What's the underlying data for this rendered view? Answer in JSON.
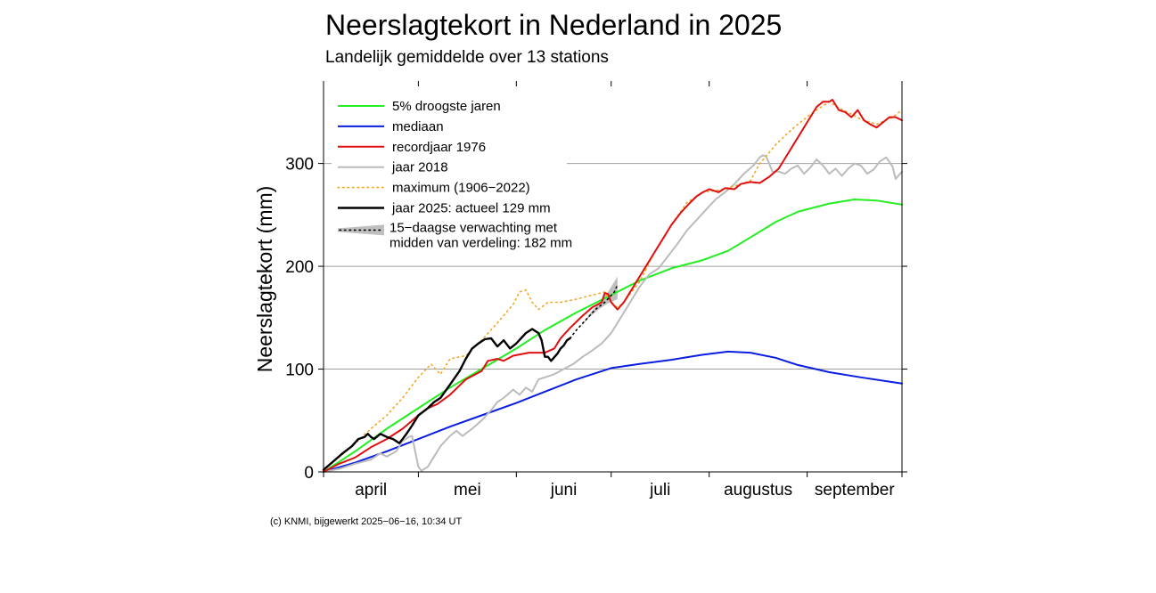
{
  "title": "Neerslagtekort in Nederland in 2025",
  "subtitle": "Landelijk gemiddelde over 13 stations",
  "footer": "(c) KNMI, bijgewerkt 2025−06−16, 10:34 UT",
  "chart_data": {
    "type": "line",
    "title": "Neerslagtekort in Nederland in 2025",
    "subtitle": "Landelijk gemiddelde over 13 stations",
    "ylabel": "Neerslagtekort (mm)",
    "xlabel": "",
    "xlim_days": [
      0,
      183
    ],
    "ylim": [
      0,
      375
    ],
    "yticks": [
      0,
      100,
      200,
      300
    ],
    "month_ticks": [
      0,
      30,
      61,
      91,
      122,
      153,
      183
    ],
    "month_labels": [
      {
        "label": "april",
        "mid": 15
      },
      {
        "label": "mei",
        "mid": 45.5
      },
      {
        "label": "juni",
        "mid": 76
      },
      {
        "label": "juli",
        "mid": 106.5
      },
      {
        "label": "augustus",
        "mid": 137.5
      },
      {
        "label": "september",
        "mid": 168
      }
    ],
    "grid": "horizontal",
    "legend_position": "top-left",
    "series": [
      {
        "key": "dry5",
        "name": "5% droogste jaren",
        "color": "#22ee22",
        "style": "solid",
        "width": 2,
        "points": [
          [
            0,
            0
          ],
          [
            10,
            20
          ],
          [
            20,
            42
          ],
          [
            30,
            62
          ],
          [
            40,
            82
          ],
          [
            50,
            100
          ],
          [
            61,
            120
          ],
          [
            70,
            138
          ],
          [
            80,
            155
          ],
          [
            91,
            172
          ],
          [
            100,
            186
          ],
          [
            110,
            198
          ],
          [
            120,
            206
          ],
          [
            128,
            215
          ],
          [
            135,
            228
          ],
          [
            143,
            243
          ],
          [
            150,
            253
          ],
          [
            160,
            261
          ],
          [
            168,
            265
          ],
          [
            175,
            264
          ],
          [
            183,
            260
          ]
        ]
      },
      {
        "key": "median",
        "name": "mediaan",
        "color": "#0a1ee0",
        "style": "solid",
        "width": 2,
        "points": [
          [
            0,
            0
          ],
          [
            10,
            9
          ],
          [
            20,
            20
          ],
          [
            30,
            32
          ],
          [
            40,
            44
          ],
          [
            50,
            55
          ],
          [
            61,
            67
          ],
          [
            70,
            78
          ],
          [
            80,
            90
          ],
          [
            91,
            101
          ],
          [
            100,
            105
          ],
          [
            110,
            109
          ],
          [
            120,
            114
          ],
          [
            128,
            117
          ],
          [
            135,
            116
          ],
          [
            143,
            111
          ],
          [
            150,
            104
          ],
          [
            160,
            97
          ],
          [
            170,
            92
          ],
          [
            183,
            86
          ]
        ]
      },
      {
        "key": "r1976",
        "name": "recordjaar 1976",
        "color": "#e01010",
        "style": "solid",
        "width": 2,
        "points": [
          [
            0,
            0
          ],
          [
            5,
            8
          ],
          [
            10,
            14
          ],
          [
            15,
            24
          ],
          [
            20,
            32
          ],
          [
            25,
            42
          ],
          [
            30,
            55
          ],
          [
            33,
            62
          ],
          [
            36,
            66
          ],
          [
            40,
            75
          ],
          [
            45,
            90
          ],
          [
            50,
            98
          ],
          [
            52,
            108
          ],
          [
            55,
            110
          ],
          [
            57,
            108
          ],
          [
            60,
            113
          ],
          [
            65,
            116
          ],
          [
            70,
            116
          ],
          [
            73,
            120
          ],
          [
            75,
            130
          ],
          [
            78,
            140
          ],
          [
            82,
            152
          ],
          [
            85,
            160
          ],
          [
            88,
            165
          ],
          [
            89,
            174
          ],
          [
            90,
            173
          ],
          [
            91,
            165
          ],
          [
            93,
            158
          ],
          [
            95,
            165
          ],
          [
            98,
            180
          ],
          [
            101,
            195
          ],
          [
            104,
            210
          ],
          [
            107,
            225
          ],
          [
            110,
            240
          ],
          [
            113,
            252
          ],
          [
            116,
            262
          ],
          [
            118,
            268
          ],
          [
            120,
            272
          ],
          [
            122,
            275
          ],
          [
            125,
            272
          ],
          [
            127,
            276
          ],
          [
            130,
            275
          ],
          [
            132,
            280
          ],
          [
            135,
            282
          ],
          [
            138,
            281
          ],
          [
            141,
            287
          ],
          [
            144,
            295
          ],
          [
            147,
            310
          ],
          [
            150,
            325
          ],
          [
            153,
            340
          ],
          [
            156,
            355
          ],
          [
            158,
            360
          ],
          [
            160,
            360
          ],
          [
            161,
            362
          ],
          [
            163,
            352
          ],
          [
            165,
            350
          ],
          [
            167,
            345
          ],
          [
            169,
            352
          ],
          [
            171,
            342
          ],
          [
            173,
            338
          ],
          [
            175,
            335
          ],
          [
            177,
            340
          ],
          [
            179,
            345
          ],
          [
            181,
            345
          ],
          [
            183,
            342
          ]
        ]
      },
      {
        "key": "y2018",
        "name": "jaar 2018",
        "color": "#bbbbbb",
        "style": "solid",
        "width": 2,
        "points": [
          [
            0,
            0
          ],
          [
            5,
            3
          ],
          [
            10,
            8
          ],
          [
            15,
            12
          ],
          [
            18,
            18
          ],
          [
            20,
            15
          ],
          [
            23,
            20
          ],
          [
            25,
            30
          ],
          [
            27,
            34
          ],
          [
            28,
            35
          ],
          [
            29,
            20
          ],
          [
            30,
            5
          ],
          [
            31,
            1
          ],
          [
            33,
            5
          ],
          [
            35,
            15
          ],
          [
            37,
            25
          ],
          [
            40,
            35
          ],
          [
            42,
            40
          ],
          [
            44,
            35
          ],
          [
            47,
            42
          ],
          [
            50,
            50
          ],
          [
            53,
            60
          ],
          [
            55,
            68
          ],
          [
            57,
            72
          ],
          [
            60,
            80
          ],
          [
            62,
            75
          ],
          [
            64,
            82
          ],
          [
            66,
            78
          ],
          [
            68,
            90
          ],
          [
            70,
            92
          ],
          [
            73,
            95
          ],
          [
            76,
            100
          ],
          [
            79,
            105
          ],
          [
            82,
            112
          ],
          [
            85,
            118
          ],
          [
            88,
            125
          ],
          [
            91,
            135
          ],
          [
            94,
            150
          ],
          [
            97,
            165
          ],
          [
            100,
            180
          ],
          [
            103,
            192
          ],
          [
            106,
            198
          ],
          [
            109,
            210
          ],
          [
            112,
            222
          ],
          [
            115,
            235
          ],
          [
            118,
            245
          ],
          [
            121,
            255
          ],
          [
            124,
            265
          ],
          [
            127,
            272
          ],
          [
            130,
            280
          ],
          [
            133,
            290
          ],
          [
            136,
            298
          ],
          [
            138,
            306
          ],
          [
            139,
            308
          ],
          [
            140,
            307
          ],
          [
            141,
            300
          ],
          [
            142,
            292
          ],
          [
            144,
            292
          ],
          [
            146,
            290
          ],
          [
            148,
            295
          ],
          [
            150,
            298
          ],
          [
            152,
            290
          ],
          [
            154,
            296
          ],
          [
            156,
            304
          ],
          [
            158,
            298
          ],
          [
            160,
            290
          ],
          [
            162,
            295
          ],
          [
            164,
            288
          ],
          [
            166,
            295
          ],
          [
            168,
            300
          ],
          [
            170,
            298
          ],
          [
            172,
            290
          ],
          [
            174,
            294
          ],
          [
            176,
            302
          ],
          [
            178,
            306
          ],
          [
            180,
            297
          ],
          [
            181,
            285
          ],
          [
            183,
            292
          ]
        ]
      },
      {
        "key": "maxdot",
        "name": "maximum (1906−2022)",
        "color": "#f5a623",
        "style": "dotted",
        "width": 1.6,
        "points": [
          [
            0,
            2
          ],
          [
            8,
            22
          ],
          [
            15,
            42
          ],
          [
            20,
            55
          ],
          [
            25,
            72
          ],
          [
            30,
            92
          ],
          [
            34,
            105
          ],
          [
            37,
            95
          ],
          [
            40,
            110
          ],
          [
            45,
            113
          ],
          [
            50,
            128
          ],
          [
            55,
            145
          ],
          [
            60,
            163
          ],
          [
            62,
            175
          ],
          [
            64,
            177
          ],
          [
            66,
            165
          ],
          [
            68,
            158
          ],
          [
            71,
            165
          ],
          [
            75,
            165
          ],
          [
            80,
            168
          ],
          [
            85,
            172
          ],
          [
            89,
            175
          ],
          [
            91,
            165
          ],
          [
            93,
            160
          ],
          [
            95,
            165
          ],
          [
            100,
            185
          ],
          [
            105,
            215
          ],
          [
            110,
            240
          ],
          [
            115,
            262
          ],
          [
            120,
            272
          ],
          [
            125,
            274
          ],
          [
            130,
            278
          ],
          [
            135,
            283
          ],
          [
            138,
            300
          ],
          [
            140,
            307
          ],
          [
            143,
            318
          ],
          [
            147,
            330
          ],
          [
            150,
            338
          ],
          [
            155,
            350
          ],
          [
            160,
            360
          ],
          [
            163,
            354
          ],
          [
            167,
            348
          ],
          [
            170,
            343
          ],
          [
            175,
            338
          ],
          [
            180,
            345
          ],
          [
            183,
            352
          ]
        ]
      },
      {
        "key": "y2025",
        "name": "jaar 2025: actueel 129 mm",
        "color": "#000000",
        "style": "solid",
        "width": 2.4,
        "points": [
          [
            0,
            2
          ],
          [
            3,
            10
          ],
          [
            6,
            18
          ],
          [
            9,
            25
          ],
          [
            11,
            32
          ],
          [
            13,
            34
          ],
          [
            14,
            37
          ],
          [
            15,
            34
          ],
          [
            16,
            32
          ],
          [
            18,
            37
          ],
          [
            20,
            34
          ],
          [
            22,
            32
          ],
          [
            24,
            28
          ],
          [
            26,
            36
          ],
          [
            28,
            45
          ],
          [
            30,
            55
          ],
          [
            33,
            62
          ],
          [
            35,
            68
          ],
          [
            37,
            72
          ],
          [
            40,
            85
          ],
          [
            43,
            98
          ],
          [
            45,
            110
          ],
          [
            47,
            120
          ],
          [
            49,
            125
          ],
          [
            51,
            129
          ],
          [
            53,
            130
          ],
          [
            55,
            122
          ],
          [
            57,
            128
          ],
          [
            59,
            120
          ],
          [
            61,
            125
          ],
          [
            64,
            135
          ],
          [
            66,
            139
          ],
          [
            68,
            135
          ],
          [
            69,
            128
          ],
          [
            70,
            112
          ],
          [
            71,
            112
          ],
          [
            72,
            108
          ],
          [
            74,
            115
          ],
          [
            75,
            120
          ],
          [
            76,
            123
          ],
          [
            77,
            128
          ],
          [
            78,
            130
          ]
        ]
      }
    ],
    "forecast": {
      "name": "15−daagse verwachting met midden van verdeling: 182 mm",
      "label_line1": "15−daagse verwachting met",
      "label_line2": "midden van verdeling: 182 mm",
      "band_color": "#bfbfbf",
      "median_points": [
        [
          78,
          130
        ],
        [
          80,
          138
        ],
        [
          83,
          148
        ],
        [
          86,
          158
        ],
        [
          89,
          165
        ],
        [
          92,
          175
        ],
        [
          93,
          182
        ]
      ],
      "lower": [
        [
          78,
          130
        ],
        [
          81,
          140
        ],
        [
          84,
          150
        ],
        [
          87,
          158
        ],
        [
          90,
          164
        ],
        [
          93,
          168
        ]
      ],
      "upper": [
        [
          78,
          130
        ],
        [
          81,
          140
        ],
        [
          84,
          153
        ],
        [
          87,
          164
        ],
        [
          90,
          175
        ],
        [
          93,
          190
        ]
      ]
    }
  }
}
